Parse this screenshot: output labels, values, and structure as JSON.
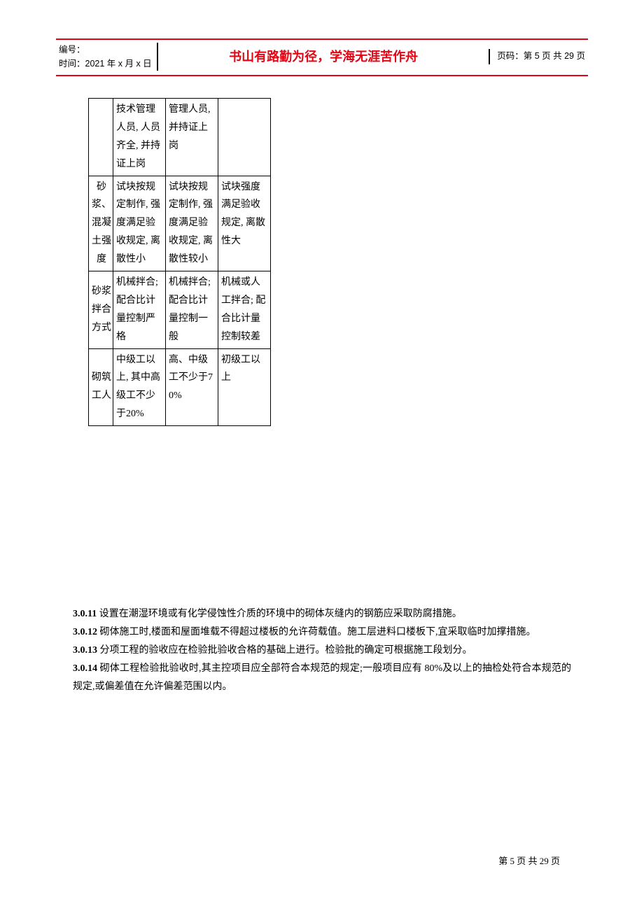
{
  "header": {
    "serial_label": "编号：",
    "time_label": "时间：2021 年 x 月 x 日",
    "motto": "书山有路勤为径，学海无涯苦作舟",
    "page_label": "页码：第 5 页 共 29 页"
  },
  "table": {
    "rows": [
      {
        "label": "",
        "a": "技术管理人员, 人员齐全, 并持证上岗",
        "b": "管理人员, 并持证上岗",
        "c": ""
      },
      {
        "label": "砂浆、混凝土强度",
        "a": "试块按规定制作, 强度满足验收规定, 离散性小",
        "b": "试块按规定制作, 强度满足验收规定, 离散性较小",
        "c": "试块强度满足验收规定, 离散性大"
      },
      {
        "label": "砂浆拌合方式",
        "a": "机械拌合; 配合比计量控制严格",
        "b": "机械拌合; 配合比计量控制一般",
        "c": "机械或人工拌合; 配合比计量控制较差"
      },
      {
        "label": "砌筑工人",
        "a": "中级工以上, 其中高级工不少于20%",
        "b": "高、中级工不少于70%",
        "c": "初级工以上"
      }
    ]
  },
  "paragraphs": {
    "p1_num": "3.0.11",
    "p1_text": " 设置在潮湿环境或有化学侵蚀性介质的环境中的砌体灰缝内的钢筋应采取防腐措施。",
    "p2_num": "3.0.12",
    "p2_text": " 砌体施工时,楼面和屋面堆载不得超过楼板的允许荷载值。施工层进料口楼板下,宜采取临时加撑措施。",
    "p3_num": "3.0.13",
    "p3_text": " 分项工程的验收应在检验批验收合格的基础上进行。检验批的确定可根据施工段划分。",
    "p4_num": "3.0.14",
    "p4_text": " 砌体工程检验批验收时,其主控项目应全部符合本规范的规定;一般项目应有 80%及以上的抽检处符合本规范的规定,或偏差值在允许偏差范围以内。"
  },
  "footer": {
    "text": "第 5 页 共 29 页"
  }
}
